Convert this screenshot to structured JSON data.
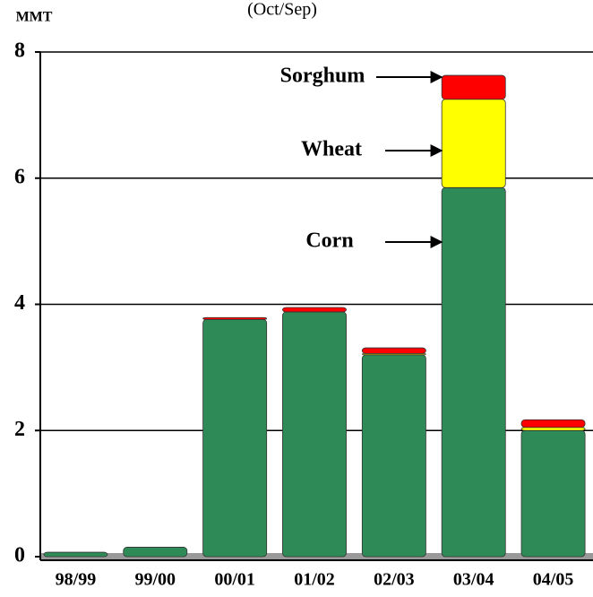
{
  "chart_data": {
    "type": "bar",
    "stacked": true,
    "title": "(Oct/Sep)",
    "ylabel": "MMT",
    "categories": [
      "98/99",
      "99/00",
      "00/01",
      "01/02",
      "02/03",
      "03/04",
      "04/05"
    ],
    "series": [
      {
        "name": "Corn",
        "color": "#2e8b57",
        "values": [
          0.07,
          0.15,
          3.76,
          3.88,
          3.2,
          5.85,
          2.0
        ]
      },
      {
        "name": "Wheat",
        "color": "#ffff00",
        "values": [
          0,
          0,
          0,
          0,
          0.02,
          1.4,
          0.05
        ]
      },
      {
        "name": "Sorghum",
        "color": "#ff0000",
        "values": [
          0,
          0,
          0.03,
          0.07,
          0.09,
          0.38,
          0.12
        ]
      }
    ],
    "ylim": [
      0,
      8
    ],
    "yticks": [
      0,
      2,
      4,
      6,
      8
    ],
    "grid": true
  }
}
